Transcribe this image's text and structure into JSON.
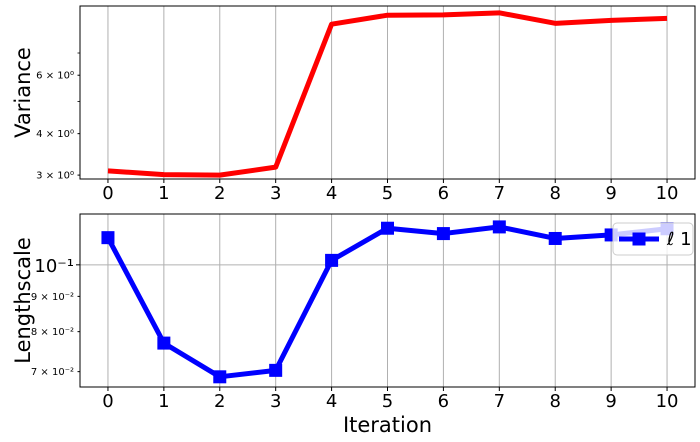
{
  "chart_data": [
    {
      "type": "line",
      "ylabel": "Variance",
      "xlabel": "",
      "yscale": "log",
      "ylim": [
        2.92,
        9.7
      ],
      "xlim": [
        -0.5,
        10.5
      ],
      "grid": "vertical",
      "x": [
        0,
        1,
        2,
        3,
        4,
        5,
        6,
        7,
        8,
        9,
        10
      ],
      "x_tick_labels": [
        "0",
        "1",
        "2",
        "3",
        "4",
        "5",
        "6",
        "7",
        "8",
        "9",
        "10"
      ],
      "y_tick_labels": [
        {
          "value": 3,
          "text": "3 × 10⁰"
        },
        {
          "value": 4,
          "text": "4 × 10⁰"
        },
        {
          "value": 6,
          "text": "6 × 10⁰"
        }
      ],
      "series": [
        {
          "name": "",
          "color": "#ff0000",
          "marker": "none",
          "values": [
            3.09,
            3.01,
            3.0,
            3.17,
            8.55,
            9.1,
            9.12,
            9.25,
            8.6,
            8.78,
            8.9
          ]
        }
      ]
    },
    {
      "type": "line",
      "ylabel": "Lengthscale",
      "xlabel": "Iteration",
      "yscale": "log",
      "ylim": [
        0.0665,
        0.1185
      ],
      "xlim": [
        -0.5,
        10.5
      ],
      "grid": "both",
      "legend": "top-right",
      "x": [
        0,
        1,
        2,
        3,
        4,
        5,
        6,
        7,
        8,
        9,
        10
      ],
      "x_tick_labels": [
        "0",
        "1",
        "2",
        "3",
        "4",
        "5",
        "6",
        "7",
        "8",
        "9",
        "10"
      ],
      "y_tick_labels": [
        {
          "value": 0.07,
          "text": "7 × 10⁻²"
        },
        {
          "value": 0.08,
          "text": "8 × 10⁻²"
        },
        {
          "value": 0.09,
          "text": "9 × 10⁻²"
        },
        {
          "value": 0.1,
          "text": "10⁻¹",
          "major": true
        }
      ],
      "series": [
        {
          "name": "ℓ 1",
          "color": "#0000ff",
          "marker": "square",
          "values": [
            0.1095,
            0.077,
            0.0688,
            0.0703,
            0.1015,
            0.113,
            0.111,
            0.1135,
            0.1092,
            0.1105,
            0.1128
          ]
        }
      ]
    }
  ]
}
